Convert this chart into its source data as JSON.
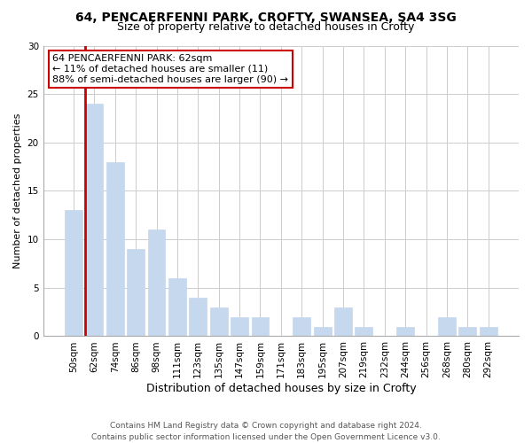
{
  "title_line1": "64, PENCAERFENNI PARK, CROFTY, SWANSEA, SA4 3SG",
  "title_line2": "Size of property relative to detached houses in Crofty",
  "xlabel": "Distribution of detached houses by size in Crofty",
  "ylabel": "Number of detached properties",
  "categories": [
    "50sqm",
    "62sqm",
    "74sqm",
    "86sqm",
    "98sqm",
    "111sqm",
    "123sqm",
    "135sqm",
    "147sqm",
    "159sqm",
    "171sqm",
    "183sqm",
    "195sqm",
    "207sqm",
    "219sqm",
    "232sqm",
    "244sqm",
    "256sqm",
    "268sqm",
    "280sqm",
    "292sqm"
  ],
  "values": [
    13,
    24,
    18,
    9,
    11,
    6,
    4,
    3,
    2,
    2,
    0,
    2,
    1,
    3,
    1,
    0,
    1,
    0,
    2,
    1,
    1
  ],
  "bar_color": "#c5d8ed",
  "highlight_bar_index": 1,
  "highlight_line_color": "#cc0000",
  "annotation_box_color": "#ffffff",
  "annotation_box_edge_color": "#cc0000",
  "annotation_line1": "64 PENCAERFENNI PARK: 62sqm",
  "annotation_line2": "← 11% of detached houses are smaller (11)",
  "annotation_line3": "88% of semi-detached houses are larger (90) →",
  "ylim": [
    0,
    30
  ],
  "yticks": [
    0,
    5,
    10,
    15,
    20,
    25,
    30
  ],
  "footer_line1": "Contains HM Land Registry data © Crown copyright and database right 2024.",
  "footer_line2": "Contains public sector information licensed under the Open Government Licence v3.0.",
  "background_color": "#ffffff",
  "grid_color": "#cccccc",
  "title_fontsize": 10,
  "subtitle_fontsize": 9,
  "ylabel_fontsize": 8,
  "xlabel_fontsize": 9,
  "tick_fontsize": 7.5,
  "annotation_fontsize": 8,
  "footer_fontsize": 6.5
}
